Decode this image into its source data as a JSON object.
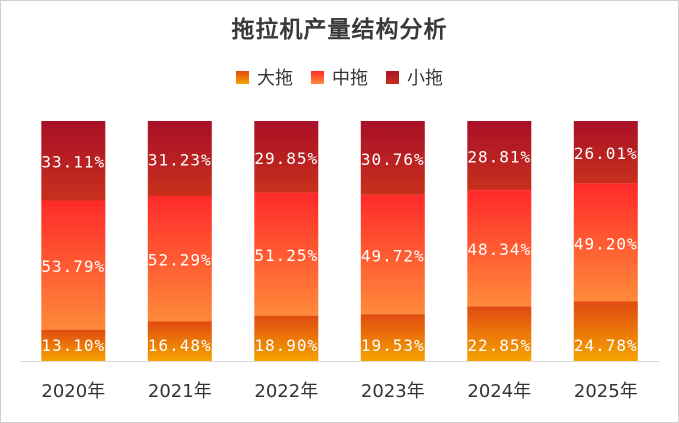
{
  "chart_data": {
    "type": "stacked-bar-100",
    "title": "拖拉机产量结构分析",
    "xlabel": "",
    "ylabel": "",
    "ylim": [
      0,
      100
    ],
    "grid": false,
    "legend_position": "top",
    "categories": [
      "2020年",
      "2021年",
      "2022年",
      "2023年",
      "2024年",
      "2025年"
    ],
    "series": [
      {
        "name": "大拖",
        "values": [
          13.1,
          16.48,
          18.9,
          19.53,
          22.85,
          24.78
        ],
        "labels": [
          "13.10%",
          "16.48%",
          "18.90%",
          "19.53%",
          "22.85%",
          "24.78%"
        ],
        "color_top": "#e04a12",
        "color_bottom": "#f5a300"
      },
      {
        "name": "中拖",
        "values": [
          53.79,
          52.29,
          51.25,
          49.72,
          48.34,
          49.2
        ],
        "labels": [
          "53.79%",
          "52.29%",
          "51.25%",
          "49.72%",
          "48.34%",
          "49.20%"
        ],
        "color_top": "#ff2a2a",
        "color_bottom": "#ff8a3a"
      },
      {
        "name": "小拖",
        "values": [
          33.11,
          31.23,
          29.85,
          30.76,
          28.81,
          26.01
        ],
        "labels": [
          "33.11%",
          "31.23%",
          "29.85%",
          "30.76%",
          "28.81%",
          "26.01%"
        ],
        "color_top": "#a81028",
        "color_bottom": "#c8301c"
      }
    ],
    "data_label_color": "#ffffff",
    "axis_color": "#d9d9d9"
  }
}
